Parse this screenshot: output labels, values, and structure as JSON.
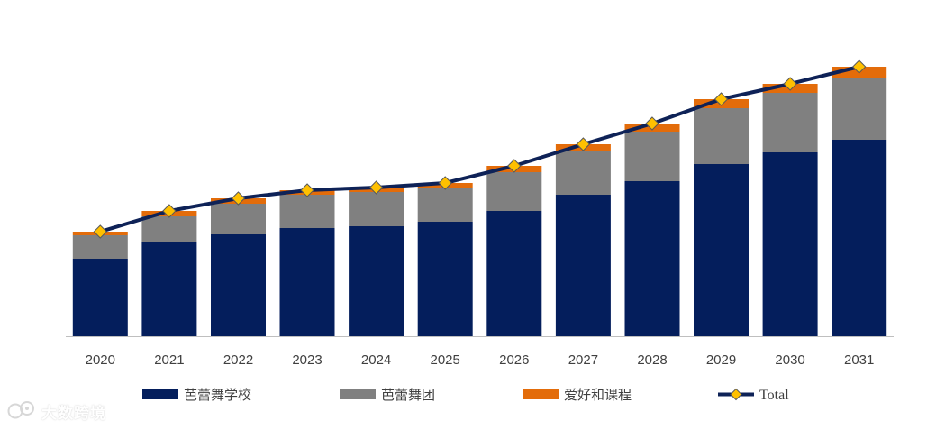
{
  "chart_data": {
    "type": "bar",
    "stacked": true,
    "categories": [
      "2020",
      "2021",
      "2022",
      "2023",
      "2024",
      "2025",
      "2026",
      "2027",
      "2028",
      "2029",
      "2030",
      "2031"
    ],
    "series": [
      {
        "name": "芭蕾舞学校",
        "color": "#041e5c",
        "values": [
          86,
          104,
          113,
          120,
          122,
          127,
          139,
          157,
          172,
          191,
          204,
          218
        ]
      },
      {
        "name": "芭蕾舞团",
        "color": "#808080",
        "values": [
          26,
          29,
          34,
          37,
          38,
          37,
          43,
          48,
          55,
          62,
          66,
          69
        ]
      },
      {
        "name": "爱好和课程",
        "color": "#e36c0a",
        "values": [
          4,
          6,
          6,
          5,
          5,
          6,
          7,
          8,
          9,
          10,
          10,
          12
        ]
      }
    ],
    "total": {
      "name": "Total",
      "line_color": "#0e2257",
      "marker_color": "#ffc000",
      "values": [
        116,
        139,
        153,
        162,
        165,
        170,
        189,
        213,
        236,
        263,
        280,
        299
      ]
    },
    "ylim": [
      0,
      330
    ],
    "legend_position": "bottom",
    "title": "",
    "xlabel": "",
    "ylabel": ""
  },
  "watermark": {
    "text": "大数跨境",
    "icon": "logo-icon"
  }
}
